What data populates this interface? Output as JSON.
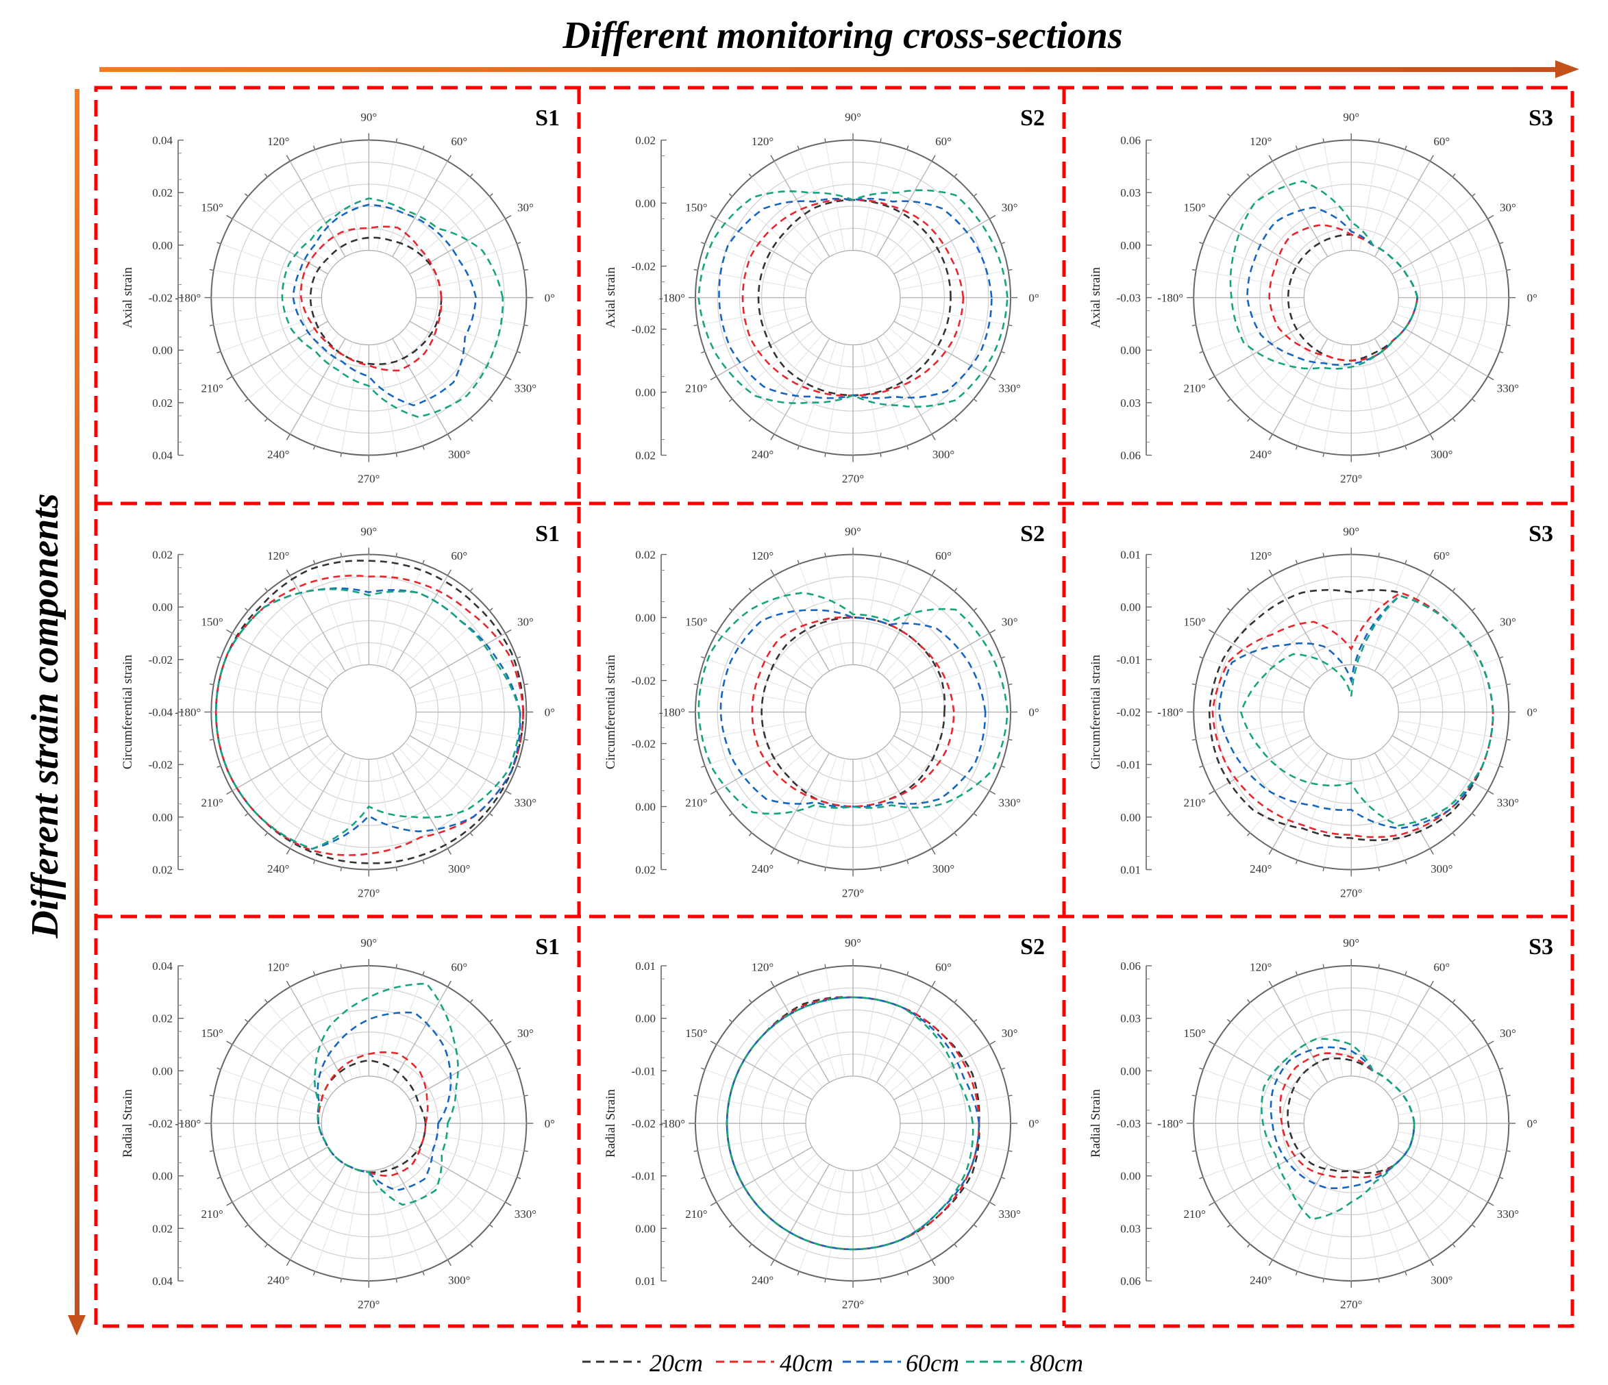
{
  "figure": {
    "top_label": "Different monitoring cross-sections",
    "left_label": "Different strain components",
    "arrow_color_start": "#F47B20",
    "arrow_color_end": "#C4501A",
    "frame_color": "#FF0000"
  },
  "legend": {
    "items": [
      {
        "label": "20cm",
        "color": "#333333"
      },
      {
        "label": "40cm",
        "color": "#E8252B"
      },
      {
        "label": "60cm",
        "color": "#1565C0"
      },
      {
        "label": "80cm",
        "color": "#16A37F"
      }
    ]
  },
  "angle_labels": [
    "0°",
    "30°",
    "60°",
    "90°",
    "120°",
    "150°",
    "-180°",
    "210°",
    "240°",
    "270°",
    "300°",
    "330°"
  ],
  "chart_data": [
    {
      "type": "polar",
      "row": 0,
      "col": 0,
      "section": "S1",
      "ylabel": "Axial strain",
      "ticks": [
        "0.04",
        "0.02",
        "0.00",
        "-0.02",
        "0.00",
        "0.02",
        "0.04"
      ],
      "series": [
        {
          "name": "20cm",
          "r": [
            0.46,
            0.45,
            0.42,
            0.39,
            0.38,
            0.37,
            0.36,
            0.37,
            0.37,
            0.37,
            0.38,
            0.4,
            0.42,
            0.44,
            0.45,
            0.46
          ]
        },
        {
          "name": "40cm",
          "r": [
            0.46,
            0.45,
            0.45,
            0.48,
            0.44,
            0.45,
            0.44,
            0.44,
            0.43,
            0.4,
            0.39,
            0.4,
            0.43,
            0.5,
            0.5,
            0.47
          ]
        },
        {
          "name": "60cm",
          "r": [
            0.68,
            0.62,
            0.6,
            0.58,
            0.59,
            0.54,
            0.48,
            0.47,
            0.48,
            0.45,
            0.43,
            0.44,
            0.5,
            0.74,
            0.76,
            0.66
          ]
        },
        {
          "name": "80cm",
          "r": [
            0.85,
            0.78,
            0.62,
            0.6,
            0.63,
            0.56,
            0.52,
            0.55,
            0.55,
            0.53,
            0.48,
            0.5,
            0.56,
            0.82,
            0.88,
            0.86
          ]
        }
      ]
    },
    {
      "type": "polar",
      "row": 0,
      "col": 1,
      "section": "S2",
      "ylabel": "Axial strain",
      "ticks": [
        "0.02",
        "0.00",
        "-0.02",
        "-0.02",
        "0.00",
        "0.02"
      ],
      "series": [
        {
          "name": "20cm",
          "r": [
            0.62,
            0.62,
            0.62,
            0.62,
            0.62,
            0.62,
            0.6,
            0.6,
            0.6,
            0.6,
            0.62,
            0.62,
            0.62,
            0.62,
            0.62,
            0.62
          ]
        },
        {
          "name": "40cm",
          "r": [
            0.7,
            0.67,
            0.66,
            0.63,
            0.62,
            0.64,
            0.67,
            0.7,
            0.7,
            0.7,
            0.67,
            0.64,
            0.62,
            0.63,
            0.66,
            0.69
          ]
        },
        {
          "name": "60cm",
          "r": [
            0.88,
            0.85,
            0.8,
            0.66,
            0.62,
            0.66,
            0.8,
            0.86,
            0.85,
            0.84,
            0.8,
            0.68,
            0.62,
            0.68,
            0.84,
            0.88
          ]
        },
        {
          "name": "80cm",
          "r": [
            0.98,
            0.95,
            0.92,
            0.72,
            0.62,
            0.72,
            0.9,
            0.96,
            0.98,
            0.94,
            0.88,
            0.72,
            0.62,
            0.74,
            0.92,
            0.96
          ]
        }
      ]
    },
    {
      "type": "polar",
      "row": 0,
      "col": 2,
      "section": "S3",
      "ylabel": "Axial strain",
      "ticks": [
        "0.06",
        "0.03",
        "0.00",
        "-0.03",
        "0.00",
        "0.03",
        "0.06"
      ],
      "series": [
        {
          "name": "20cm",
          "r": [
            0.42,
            0.38,
            0.36,
            0.36,
            0.4,
            0.4,
            0.4,
            0.4,
            0.4,
            0.4,
            0.4,
            0.4,
            0.4,
            0.38,
            0.38,
            0.4
          ]
        },
        {
          "name": "40cm",
          "r": [
            0.42,
            0.38,
            0.36,
            0.36,
            0.4,
            0.5,
            0.55,
            0.52,
            0.52,
            0.5,
            0.44,
            0.4,
            0.4,
            0.4,
            0.38,
            0.4
          ]
        },
        {
          "name": "60cm",
          "r": [
            0.42,
            0.38,
            0.36,
            0.36,
            0.42,
            0.62,
            0.68,
            0.66,
            0.66,
            0.62,
            0.52,
            0.45,
            0.42,
            0.4,
            0.38,
            0.4
          ]
        },
        {
          "name": "80cm",
          "r": [
            0.42,
            0.38,
            0.36,
            0.36,
            0.48,
            0.8,
            0.86,
            0.8,
            0.76,
            0.74,
            0.6,
            0.48,
            0.44,
            0.4,
            0.38,
            0.4
          ]
        }
      ]
    },
    {
      "type": "polar",
      "row": 1,
      "col": 0,
      "section": "S1",
      "ylabel": "Circumferential strain",
      "ticks": [
        "0.02",
        "0.00",
        "-0.02",
        "-0.04",
        "-0.02",
        "0.00",
        "0.02"
      ],
      "series": [
        {
          "name": "20cm",
          "r": [
            0.98,
            0.98,
            0.96,
            0.96,
            0.96,
            0.98,
            0.96,
            0.97,
            0.97,
            0.97,
            0.96,
            0.96,
            0.96,
            0.97,
            0.98,
            0.98
          ]
        },
        {
          "name": "40cm",
          "r": [
            0.98,
            0.96,
            0.9,
            0.88,
            0.86,
            0.9,
            0.94,
            0.97,
            0.97,
            0.97,
            0.96,
            0.95,
            0.9,
            0.86,
            0.94,
            0.98
          ]
        },
        {
          "name": "60cm",
          "r": [
            0.96,
            0.88,
            0.82,
            0.82,
            0.76,
            0.84,
            0.94,
            0.97,
            0.97,
            0.97,
            0.96,
            0.94,
            0.66,
            0.82,
            0.94,
            0.98
          ]
        },
        {
          "name": "80cm",
          "r": [
            0.96,
            0.86,
            0.82,
            0.82,
            0.74,
            0.84,
            0.94,
            0.97,
            0.97,
            0.97,
            0.96,
            0.94,
            0.6,
            0.72,
            0.88,
            0.96
          ]
        }
      ]
    },
    {
      "type": "polar",
      "row": 1,
      "col": 1,
      "section": "S2",
      "ylabel": "Circumferential strain",
      "ticks": [
        "0.02",
        "0.00",
        "-0.02",
        "-0.02",
        "0.00",
        "0.02"
      ],
      "series": [
        {
          "name": "20cm",
          "r": [
            0.58,
            0.6,
            0.6,
            0.6,
            0.6,
            0.6,
            0.6,
            0.58,
            0.58,
            0.58,
            0.58,
            0.6,
            0.6,
            0.6,
            0.6,
            0.58
          ]
        },
        {
          "name": "40cm",
          "r": [
            0.64,
            0.62,
            0.6,
            0.6,
            0.6,
            0.62,
            0.66,
            0.64,
            0.64,
            0.64,
            0.62,
            0.6,
            0.6,
            0.6,
            0.62,
            0.64
          ]
        },
        {
          "name": "60cm",
          "r": [
            0.84,
            0.8,
            0.75,
            0.6,
            0.6,
            0.7,
            0.82,
            0.84,
            0.84,
            0.82,
            0.78,
            0.62,
            0.6,
            0.62,
            0.78,
            0.84
          ]
        },
        {
          "name": "80cm",
          "r": [
            0.98,
            0.95,
            0.92,
            0.62,
            0.62,
            0.82,
            0.92,
            0.98,
            0.98,
            0.96,
            0.9,
            0.64,
            0.6,
            0.64,
            0.82,
            0.96
          ]
        }
      ]
    },
    {
      "type": "polar",
      "row": 1,
      "col": 2,
      "section": "S3",
      "ylabel": "Circumferential strain",
      "ticks": [
        "0.01",
        "0.00",
        "-0.01",
        "-0.02",
        "-0.01",
        "0.00",
        "0.01"
      ],
      "series": [
        {
          "name": "20cm",
          "r": [
            0.9,
            0.88,
            0.84,
            0.82,
            0.76,
            0.82,
            0.84,
            0.88,
            0.9,
            0.9,
            0.88,
            0.8,
            0.8,
            0.86,
            0.9,
            0.9
          ]
        },
        {
          "name": "40cm",
          "r": [
            0.9,
            0.88,
            0.84,
            0.82,
            0.4,
            0.62,
            0.7,
            0.84,
            0.88,
            0.86,
            0.82,
            0.78,
            0.78,
            0.84,
            0.88,
            0.9
          ]
        },
        {
          "name": "60cm",
          "r": [
            0.9,
            0.88,
            0.84,
            0.8,
            0.2,
            0.45,
            0.6,
            0.82,
            0.84,
            0.78,
            0.72,
            0.64,
            0.62,
            0.8,
            0.88,
            0.9
          ]
        },
        {
          "name": "80cm",
          "r": [
            0.9,
            0.88,
            0.84,
            0.8,
            0.1,
            0.3,
            0.52,
            0.6,
            0.7,
            0.62,
            0.56,
            0.5,
            0.45,
            0.78,
            0.86,
            0.9
          ]
        }
      ]
    },
    {
      "type": "polar",
      "row": 2,
      "col": 0,
      "section": "S1",
      "ylabel": "Radial Strain",
      "ticks": [
        "0.04",
        "0.02",
        "0.00",
        "-0.02",
        "0.00",
        "0.02",
        "0.04"
      ],
      "series": [
        {
          "name": "20cm",
          "r": [
            0.36,
            0.34,
            0.36,
            0.38,
            0.4,
            0.38,
            0.36,
            0.33,
            0.32,
            0.3,
            0.3,
            0.3,
            0.31,
            0.32,
            0.34,
            0.36
          ]
        },
        {
          "name": "40cm",
          "r": [
            0.36,
            0.4,
            0.46,
            0.48,
            0.44,
            0.4,
            0.36,
            0.33,
            0.32,
            0.3,
            0.3,
            0.3,
            0.31,
            0.36,
            0.38,
            0.36
          ]
        },
        {
          "name": "60cm",
          "r": [
            0.44,
            0.56,
            0.68,
            0.76,
            0.66,
            0.54,
            0.44,
            0.34,
            0.32,
            0.3,
            0.3,
            0.3,
            0.31,
            0.46,
            0.5,
            0.44
          ]
        },
        {
          "name": "80cm",
          "r": [
            0.5,
            0.6,
            0.76,
            0.96,
            0.8,
            0.66,
            0.48,
            0.34,
            0.32,
            0.3,
            0.3,
            0.3,
            0.31,
            0.56,
            0.6,
            0.5
          ]
        }
      ]
    },
    {
      "type": "polar",
      "row": 2,
      "col": 1,
      "section": "S2",
      "ylabel": "Radial Strain",
      "ticks": [
        "0.01",
        "0.00",
        "-0.01",
        "-0.02",
        "-0.01",
        "0.00",
        "0.01"
      ],
      "series": [
        {
          "name": "20cm",
          "r": [
            0.8,
            0.82,
            0.8,
            0.8,
            0.8,
            0.82,
            0.8,
            0.8,
            0.8,
            0.8,
            0.8,
            0.8,
            0.8,
            0.8,
            0.8,
            0.82
          ]
        },
        {
          "name": "40cm",
          "r": [
            0.8,
            0.8,
            0.8,
            0.8,
            0.8,
            0.81,
            0.8,
            0.8,
            0.8,
            0.8,
            0.8,
            0.8,
            0.8,
            0.8,
            0.8,
            0.8
          ]
        },
        {
          "name": "60cm",
          "r": [
            0.8,
            0.76,
            0.78,
            0.8,
            0.8,
            0.8,
            0.8,
            0.8,
            0.8,
            0.8,
            0.8,
            0.8,
            0.8,
            0.8,
            0.78,
            0.8
          ]
        },
        {
          "name": "80cm",
          "r": [
            0.76,
            0.72,
            0.76,
            0.8,
            0.8,
            0.8,
            0.8,
            0.8,
            0.8,
            0.8,
            0.8,
            0.8,
            0.8,
            0.8,
            0.78,
            0.78
          ]
        }
      ]
    },
    {
      "type": "polar",
      "row": 2,
      "col": 2,
      "section": "S3",
      "ylabel": "Radial Strain",
      "ticks": [
        "0.06",
        "0.03",
        "0.00",
        "-0.03",
        "0.00",
        "0.03",
        "0.06"
      ],
      "series": [
        {
          "name": "20cm",
          "r": [
            0.4,
            0.38,
            0.36,
            0.36,
            0.4,
            0.44,
            0.44,
            0.42,
            0.4,
            0.38,
            0.36,
            0.32,
            0.3,
            0.34,
            0.38,
            0.4
          ]
        },
        {
          "name": "40cm",
          "r": [
            0.4,
            0.38,
            0.36,
            0.36,
            0.42,
            0.48,
            0.5,
            0.48,
            0.44,
            0.42,
            0.4,
            0.36,
            0.34,
            0.36,
            0.38,
            0.4
          ]
        },
        {
          "name": "60cm",
          "r": [
            0.4,
            0.38,
            0.36,
            0.36,
            0.46,
            0.52,
            0.56,
            0.54,
            0.5,
            0.48,
            0.46,
            0.44,
            0.4,
            0.38,
            0.38,
            0.4
          ]
        },
        {
          "name": "80cm",
          "r": [
            0.4,
            0.38,
            0.36,
            0.36,
            0.5,
            0.58,
            0.58,
            0.6,
            0.56,
            0.52,
            0.56,
            0.66,
            0.5,
            0.4,
            0.38,
            0.4
          ]
        }
      ]
    }
  ]
}
